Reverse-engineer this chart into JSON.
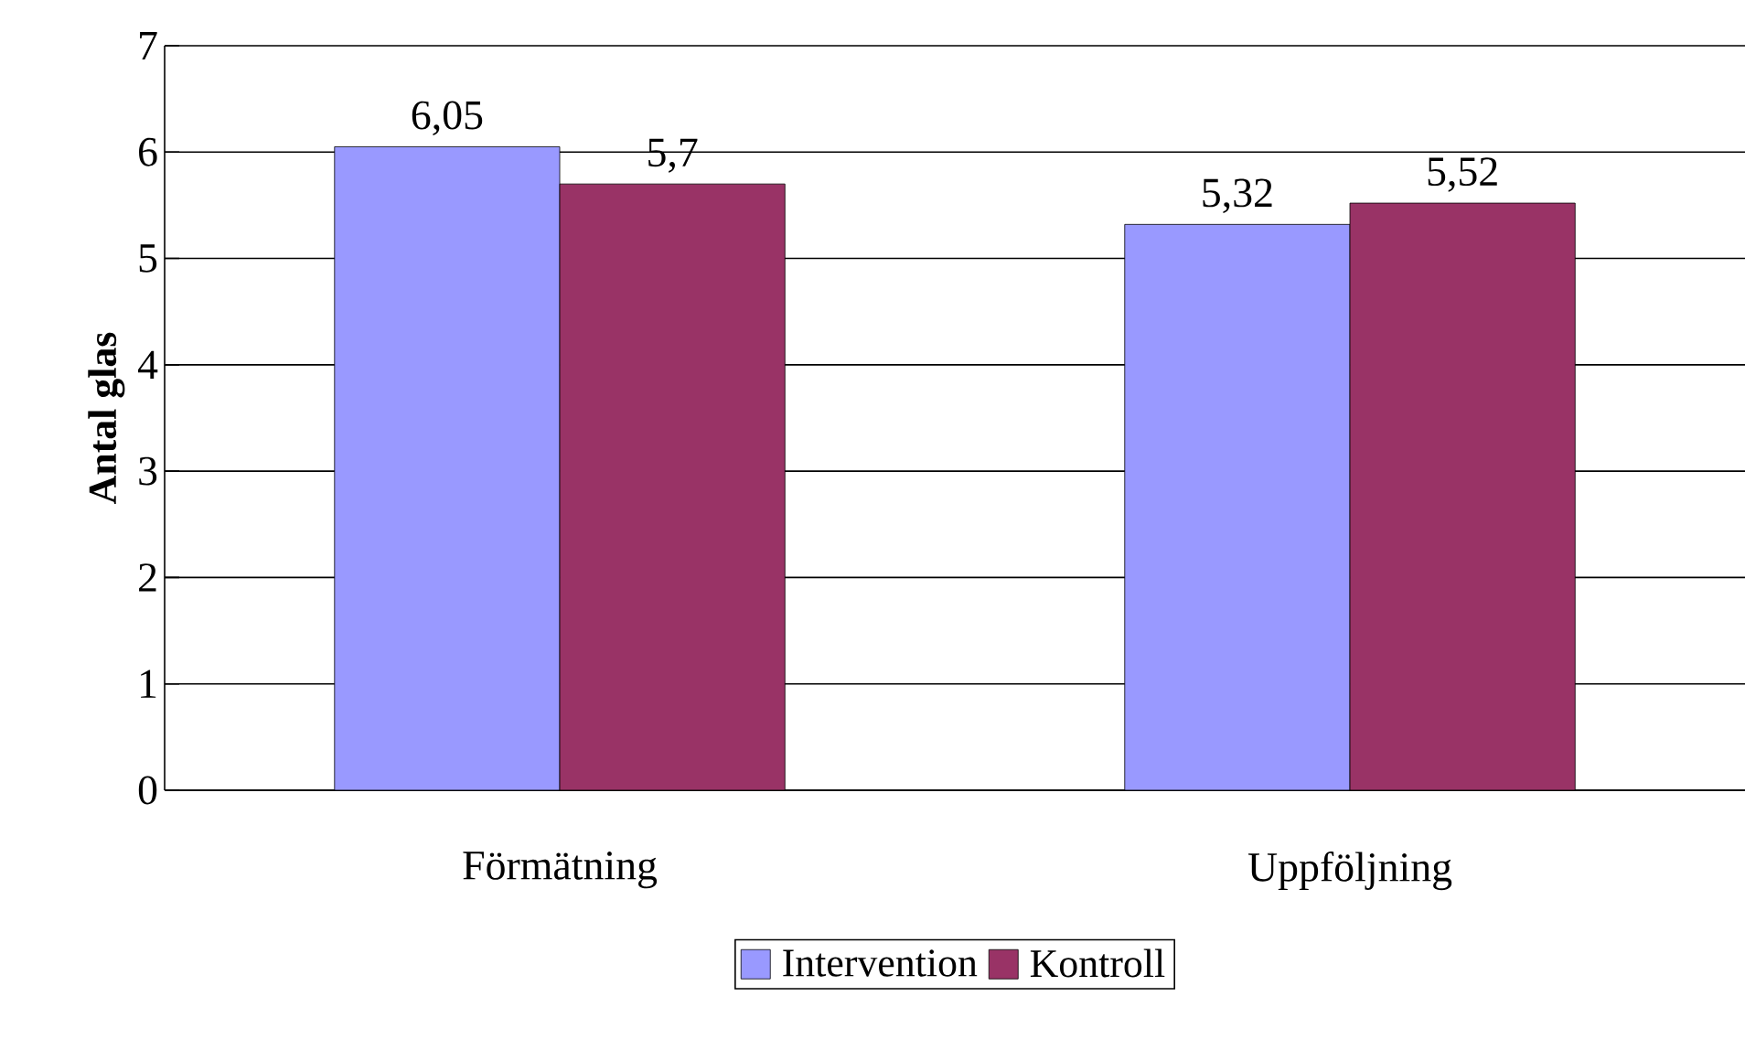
{
  "chart_data": {
    "type": "bar",
    "ylabel": "Antal glas",
    "categories": [
      "Förmätning",
      "Uppföljning"
    ],
    "series": [
      {
        "name": "Intervention",
        "color": "#9999ff",
        "values": [
          6.05,
          5.32
        ],
        "value_labels": [
          "6,05",
          "5,32"
        ]
      },
      {
        "name": "Kontroll",
        "color": "#993366",
        "values": [
          5.7,
          5.52
        ],
        "value_labels": [
          "5,7",
          "5,52"
        ]
      }
    ],
    "ylim": [
      0,
      7
    ],
    "yticks": [
      0,
      1,
      2,
      3,
      4,
      5,
      6,
      7
    ],
    "grid": "y",
    "legend": "bottom"
  }
}
